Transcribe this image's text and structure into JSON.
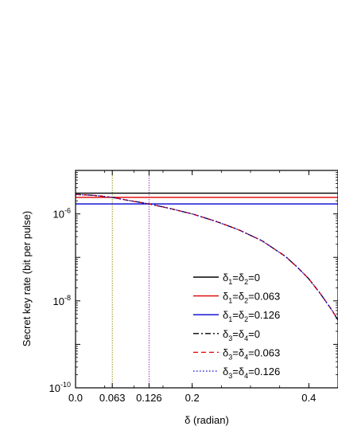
{
  "chart_data": {
    "type": "line",
    "xlabel": "δ (radian)",
    "ylabel": "Secret key rate (bit per pulse)",
    "xlim": [
      0.0,
      0.45
    ],
    "ylim_log10": [
      -10,
      -5.0
    ],
    "y_scale": "log",
    "x_ticks": [
      {
        "value": 0.0,
        "label": "0.0"
      },
      {
        "value": 0.063,
        "label": "0.063"
      },
      {
        "value": 0.126,
        "label": "0.126"
      },
      {
        "value": 0.2,
        "label": "0.2"
      },
      {
        "value": 0.4,
        "label": "0.4"
      }
    ],
    "y_ticks": [
      {
        "exp": -10,
        "base": "10",
        "sup": "-10"
      },
      {
        "exp": -8,
        "base": "10",
        "sup": "-8"
      },
      {
        "exp": -6,
        "base": "10",
        "sup": "-6"
      }
    ],
    "vertical_markers": [
      {
        "x": 0.063,
        "color": "#8a8a00"
      },
      {
        "x": 0.126,
        "color": "#a020c0"
      }
    ],
    "legend_position": "bottom-right",
    "series": [
      {
        "label_a": "δ",
        "sub_a": "1",
        "label_b": "=δ",
        "sub_b": "2",
        "label_c": "=0",
        "kind": "horizontal",
        "y": 3e-06,
        "color": "#000000",
        "dash": "",
        "width": 1.4
      },
      {
        "label_a": "δ",
        "sub_a": "1",
        "label_b": "=δ",
        "sub_b": "2",
        "label_c": "=0.063",
        "kind": "horizontal",
        "y": 2.4e-06,
        "color": "#e00000",
        "dash": "",
        "width": 1.4
      },
      {
        "label_a": "δ",
        "sub_a": "1",
        "label_b": "=δ",
        "sub_b": "2",
        "label_c": "=0.126",
        "kind": "horizontal",
        "y": 1.7e-06,
        "color": "#0000d0",
        "dash": "",
        "width": 1.4
      },
      {
        "label_a": "δ",
        "sub_a": "3",
        "label_b": "=δ",
        "sub_b": "4",
        "label_c": "=0",
        "kind": "curve",
        "color": "#000000",
        "dash": "7,3,2,3",
        "width": 1.3
      },
      {
        "label_a": "δ",
        "sub_a": "3",
        "label_b": "=δ",
        "sub_b": "4",
        "label_c": "=0.063",
        "kind": "curve",
        "color": "#e00000",
        "dash": "6,4",
        "width": 1.3
      },
      {
        "label_a": "δ",
        "sub_a": "3",
        "label_b": "=δ",
        "sub_b": "4",
        "label_c": "=0.126",
        "kind": "curve",
        "color": "#0000d0",
        "dash": "1.5,2.5",
        "width": 1.3
      }
    ],
    "curve_points": [
      {
        "x": 0.0,
        "y": 2.8e-06
      },
      {
        "x": 0.03,
        "y": 2.68e-06
      },
      {
        "x": 0.063,
        "y": 2.4e-06
      },
      {
        "x": 0.09,
        "y": 2.05e-06
      },
      {
        "x": 0.126,
        "y": 1.7e-06
      },
      {
        "x": 0.16,
        "y": 1.35e-06
      },
      {
        "x": 0.2,
        "y": 1e-06
      },
      {
        "x": 0.24,
        "y": 6.8e-07
      },
      {
        "x": 0.28,
        "y": 4.3e-07
      },
      {
        "x": 0.32,
        "y": 2.4e-07
      },
      {
        "x": 0.36,
        "y": 1.05e-07
      },
      {
        "x": 0.38,
        "y": 6e-08
      },
      {
        "x": 0.4,
        "y": 3.2e-08
      },
      {
        "x": 0.42,
        "y": 1.45e-08
      },
      {
        "x": 0.44,
        "y": 6e-09
      },
      {
        "x": 0.45,
        "y": 3.6e-09
      }
    ]
  }
}
